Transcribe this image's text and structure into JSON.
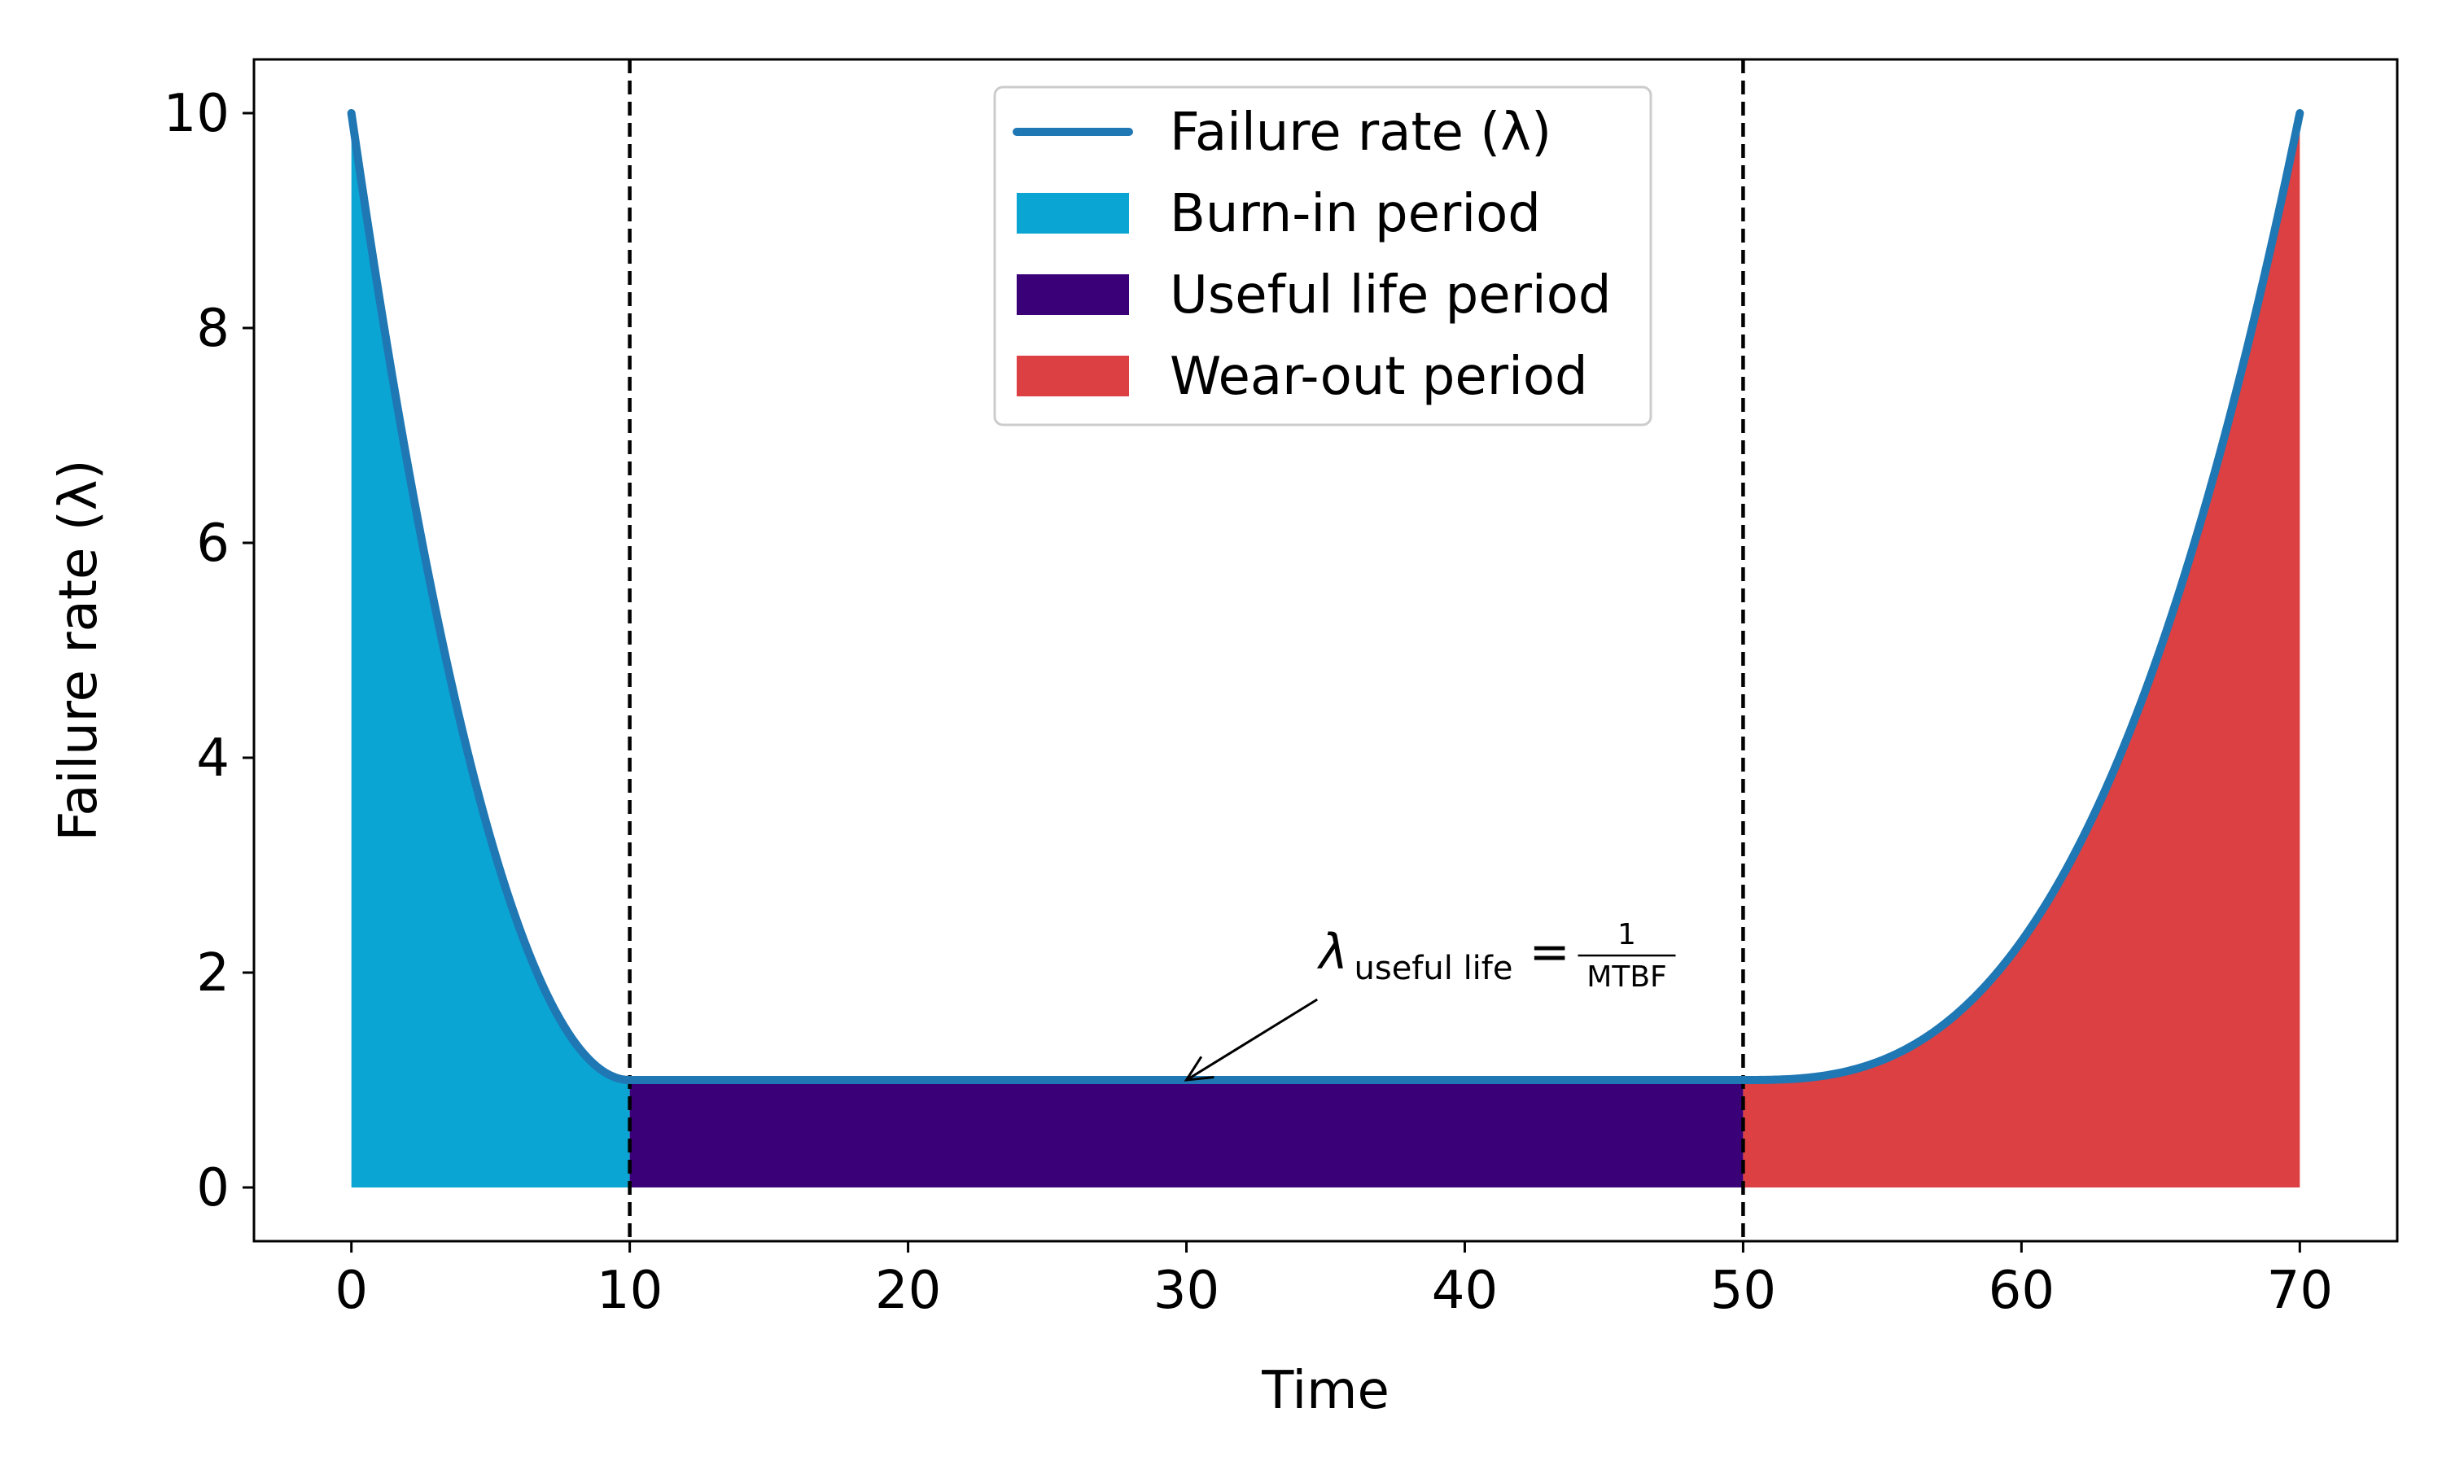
{
  "chart_data": {
    "type": "area",
    "xlabel": "Time",
    "ylabel": "Failure rate (λ)",
    "xlim": [
      -3.5,
      73.5
    ],
    "ylim": [
      -0.5,
      10.5
    ],
    "xticks": [
      0,
      10,
      20,
      30,
      40,
      50,
      60,
      70
    ],
    "yticks": [
      0,
      2,
      4,
      6,
      8,
      10
    ],
    "grid": false,
    "legend_position": "top-center",
    "series": [
      {
        "name": "Failure rate (λ)",
        "kind": "line",
        "color": "#1f77b4",
        "x": [
          0,
          1,
          2,
          3,
          4,
          5,
          6,
          7,
          8,
          9,
          10,
          15,
          20,
          25,
          30,
          35,
          40,
          45,
          50,
          52,
          54,
          56,
          58,
          60,
          62,
          64,
          66,
          68,
          70
        ],
        "y": [
          10,
          8.29,
          6.76,
          5.41,
          4.24,
          3.25,
          2.44,
          1.81,
          1.36,
          1.09,
          1.0,
          1.0,
          1.0,
          1.0,
          1.0,
          1.0,
          1.0,
          1.0,
          1.0,
          1.24,
          1.54,
          1.92,
          2.41,
          3.03,
          3.81,
          4.78,
          5.98,
          7.5,
          10.0
        ]
      },
      {
        "name": "Burn-in period",
        "kind": "fill",
        "color": "#0ba5d3",
        "x_range": [
          0,
          10
        ]
      },
      {
        "name": "Useful life period",
        "kind": "fill",
        "color": "#3a0078",
        "x_range": [
          10,
          50
        ]
      },
      {
        "name": "Wear-out period",
        "kind": "fill",
        "color": "#dc4042",
        "x_range": [
          50,
          70
        ]
      }
    ],
    "vlines": [
      10,
      50
    ],
    "annotation": {
      "lambda": "λ",
      "subscript": "useful life",
      "equals": "=",
      "numerator": "1",
      "denominator": "MTBF",
      "arrow_target": [
        30,
        1.0
      ],
      "text_at": [
        35,
        2.2
      ]
    }
  }
}
